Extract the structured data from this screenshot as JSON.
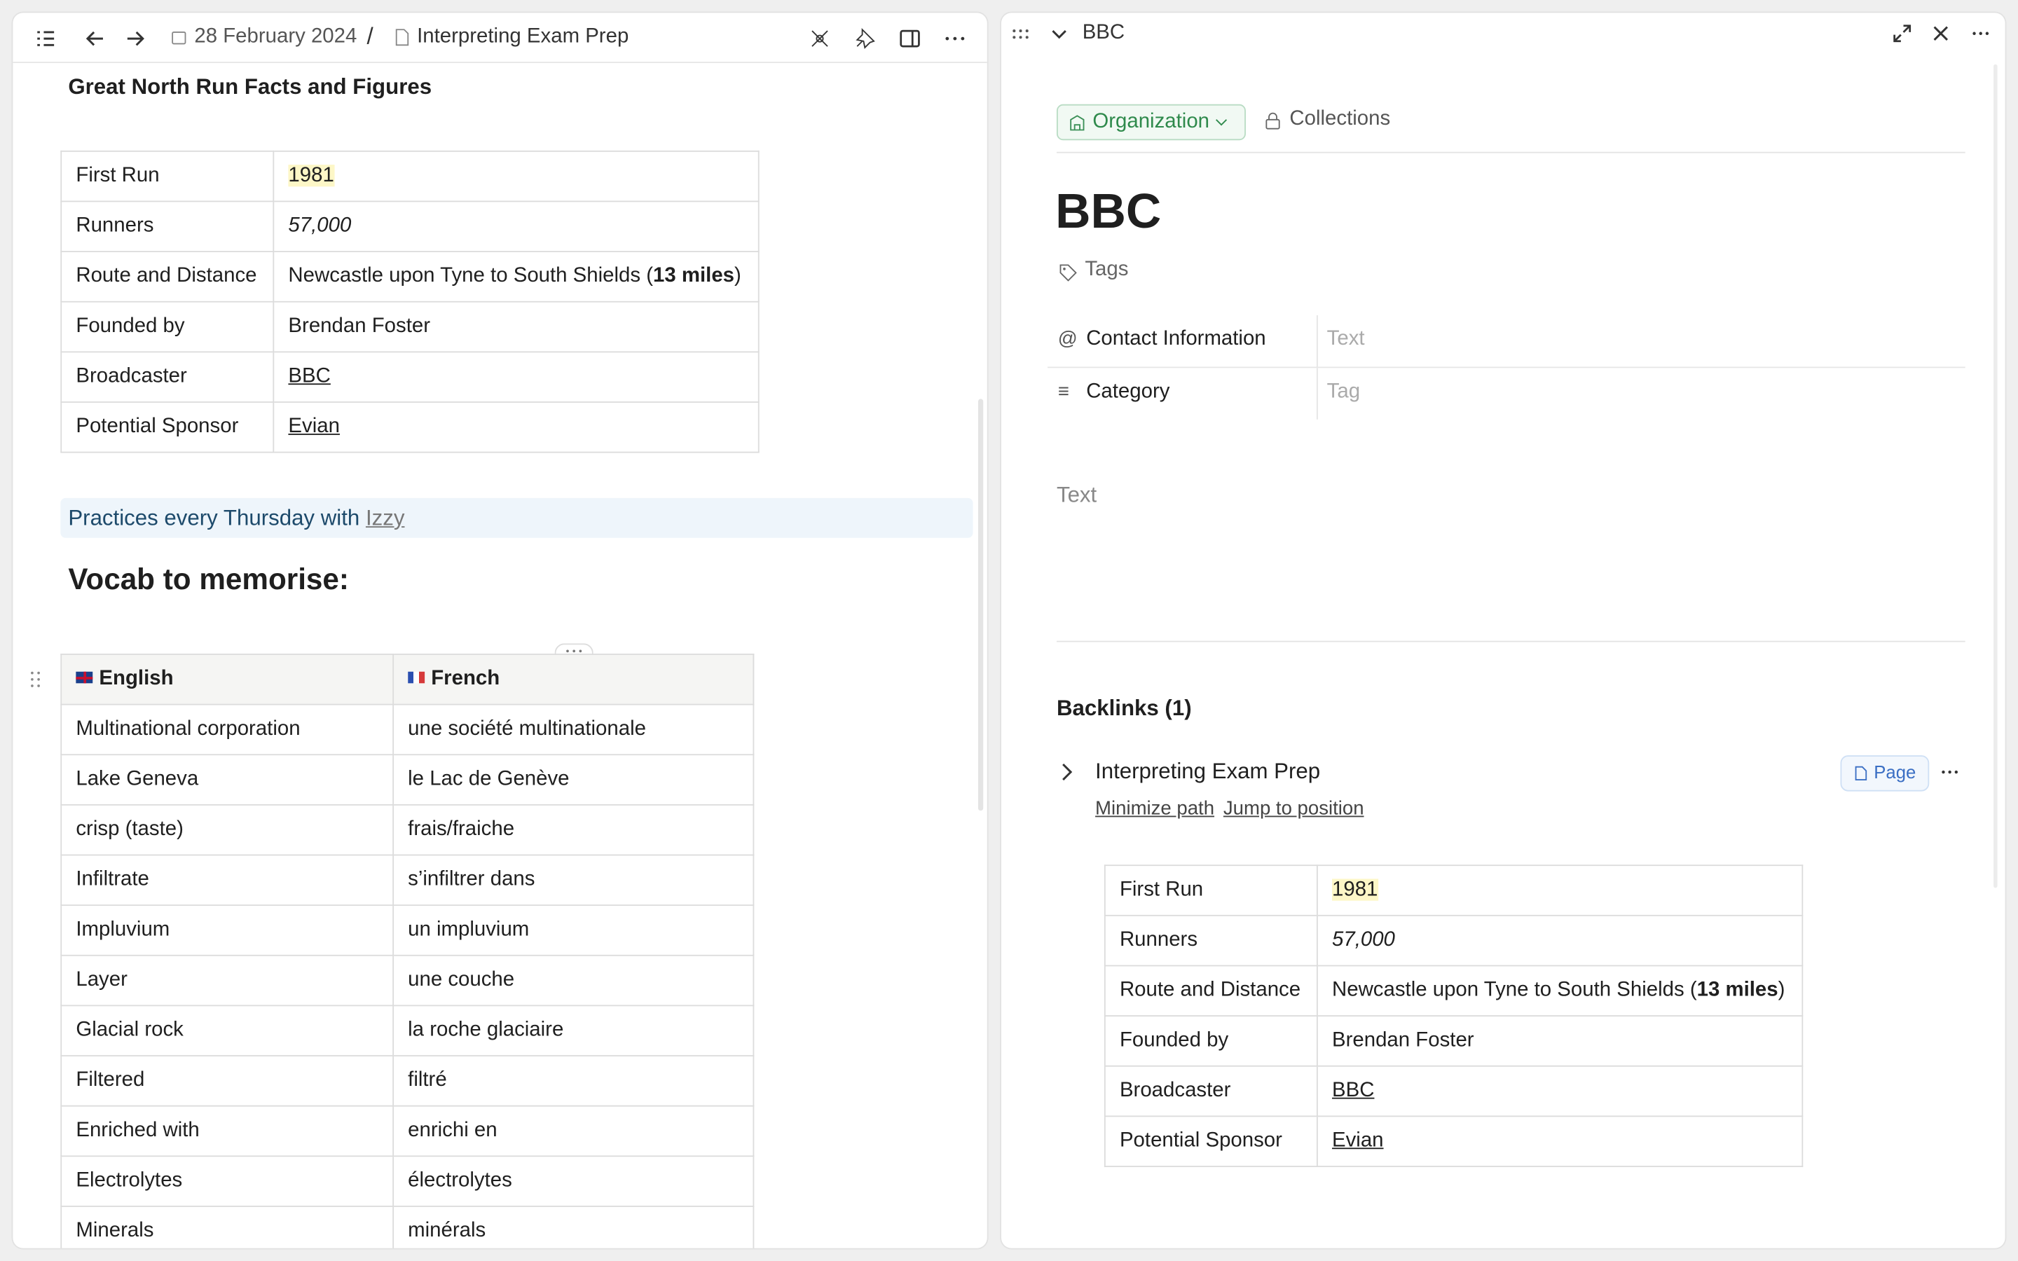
{
  "left": {
    "breadcrumb": {
      "date": "28 February 2024",
      "separator": "/",
      "page": "Interpreting Exam Prep"
    },
    "facts_heading": "Great North Run Facts and Figures",
    "facts_table": {
      "rows": [
        {
          "label": "First Run",
          "parts": [
            {
              "text": "1981",
              "style": "highlight"
            }
          ]
        },
        {
          "label": "Runners",
          "parts": [
            {
              "text": "57,000",
              "style": "italic"
            }
          ]
        },
        {
          "label": "Route and Distance",
          "parts": [
            {
              "text": "Newcastle upon Tyne to South Shields (",
              "style": "plain"
            },
            {
              "text": "13 miles",
              "style": "bold"
            },
            {
              "text": ")",
              "style": "plain"
            }
          ]
        },
        {
          "label": "Founded by",
          "parts": [
            {
              "text": "Brendan Foster",
              "style": "plain"
            }
          ]
        },
        {
          "label": "Broadcaster",
          "parts": [
            {
              "text": "BBC",
              "style": "link"
            }
          ]
        },
        {
          "label": "Potential Sponsor",
          "parts": [
            {
              "text": "Evian",
              "style": "link"
            }
          ]
        }
      ]
    },
    "callout": {
      "text": "Practices every Thursday with ",
      "link": "Izzy"
    },
    "vocab_heading": "Vocab to memorise:",
    "vocab_table": {
      "header": [
        "English",
        "French"
      ],
      "rows": [
        [
          "Multinational corporation",
          "une société multinationale"
        ],
        [
          "Lake Geneva",
          "le Lac de Genève"
        ],
        [
          "crisp (taste)",
          "frais/fraiche"
        ],
        [
          "Infiltrate",
          "s’infiltrer dans"
        ],
        [
          "Impluvium",
          "un impluvium"
        ],
        [
          "Layer",
          "une couche"
        ],
        [
          "Glacial rock",
          "la roche glaciaire"
        ],
        [
          "Filtered",
          "filtré"
        ],
        [
          "Enriched with",
          "enrichi en"
        ],
        [
          "Electrolytes",
          "électrolytes"
        ],
        [
          "Minerals",
          "minérals"
        ]
      ]
    }
  },
  "right": {
    "header_title": "BBC",
    "type_chip": "Organization",
    "collections": "Collections",
    "title": "BBC",
    "tags": "Tags",
    "properties": [
      {
        "label": "Contact Information",
        "placeholder": "Text"
      },
      {
        "label": "Category",
        "placeholder": "Tag"
      }
    ],
    "body_placeholder": "Text",
    "backlinks_heading": "Backlinks (1)",
    "backlink": {
      "title": "Interpreting Exam Prep",
      "badge": "Page",
      "actions": [
        "Minimize path",
        "Jump to position"
      ]
    },
    "backlink_table": {
      "rows": [
        {
          "label": "First Run",
          "parts": [
            {
              "text": "1981",
              "style": "highlight"
            }
          ]
        },
        {
          "label": "Runners",
          "parts": [
            {
              "text": "57,000",
              "style": "italic"
            }
          ]
        },
        {
          "label": "Route and Distance",
          "parts": [
            {
              "text": "Newcastle upon Tyne to South Shields (",
              "style": "plain"
            },
            {
              "text": "13 miles",
              "style": "bold"
            },
            {
              "text": ")",
              "style": "plain"
            }
          ]
        },
        {
          "label": "Founded by",
          "parts": [
            {
              "text": "Brendan Foster",
              "style": "plain"
            }
          ]
        },
        {
          "label": "Broadcaster",
          "parts": [
            {
              "text": "BBC",
              "style": "link"
            }
          ]
        },
        {
          "label": "Potential Sponsor",
          "parts": [
            {
              "text": "Evian",
              "style": "link"
            }
          ]
        }
      ]
    }
  }
}
